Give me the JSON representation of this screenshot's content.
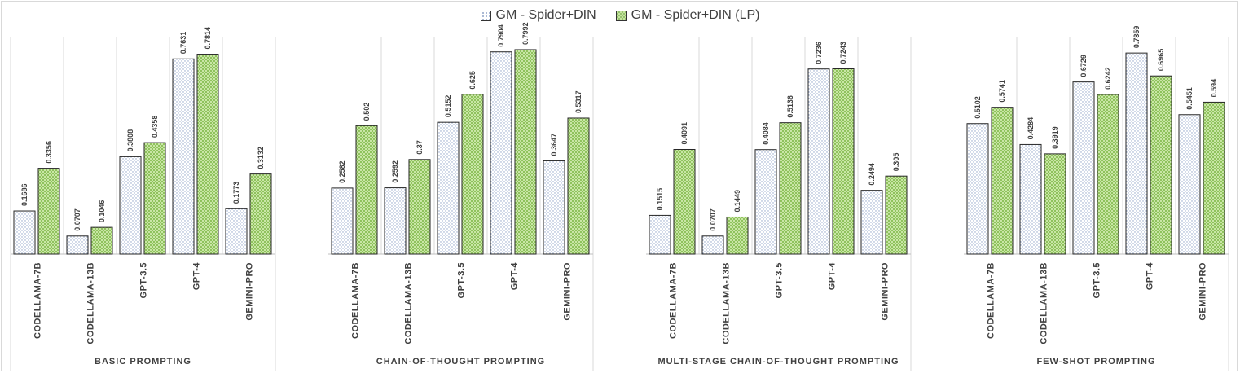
{
  "chart_data": {
    "type": "bar",
    "legend": [
      "GM - Spider+DIN",
      "GM - Spider+DIN (LP)"
    ],
    "legend_position": "top-center",
    "ylim": [
      0,
      0.85
    ],
    "grid": false,
    "categories": [
      "CODELLAMA-7B",
      "CODELLAMA-13B",
      "GPT-3.5",
      "GPT-4",
      "GEMINI-PRO"
    ],
    "groups": [
      {
        "name": "BASIC PROMPTING",
        "series": [
          {
            "name": "GM - Spider+DIN",
            "values": [
              0.1686,
              0.0707,
              0.3808,
              0.7631,
              0.1773
            ]
          },
          {
            "name": "GM - Spider+DIN (LP)",
            "values": [
              0.3356,
              0.1046,
              0.4358,
              0.7814,
              0.3132
            ]
          }
        ]
      },
      {
        "name": "CHAIN-OF-THOUGHT PROMPTING",
        "series": [
          {
            "name": "GM - Spider+DIN",
            "values": [
              0.2582,
              0.2592,
              0.5152,
              0.7904,
              0.3647
            ]
          },
          {
            "name": "GM - Spider+DIN (LP)",
            "values": [
              0.502,
              0.37,
              0.625,
              0.7992,
              0.5317
            ]
          }
        ]
      },
      {
        "name": "MULTI-STAGE CHAIN-OF-THOUGHT PROMPTING",
        "series": [
          {
            "name": "GM - Spider+DIN",
            "values": [
              0.1515,
              0.0707,
              0.4084,
              0.7236,
              0.2494
            ]
          },
          {
            "name": "GM - Spider+DIN (LP)",
            "values": [
              0.4091,
              0.1449,
              0.5136,
              0.7243,
              0.305
            ]
          }
        ]
      },
      {
        "name": "FEW-SHOT PROMPTING",
        "series": [
          {
            "name": "GM - Spider+DIN",
            "values": [
              0.5102,
              0.4284,
              0.6729,
              0.7859,
              0.5451
            ]
          },
          {
            "name": "GM - Spider+DIN (LP)",
            "values": [
              0.5741,
              0.3919,
              0.6242,
              0.6965,
              0.594
            ]
          }
        ]
      }
    ]
  }
}
